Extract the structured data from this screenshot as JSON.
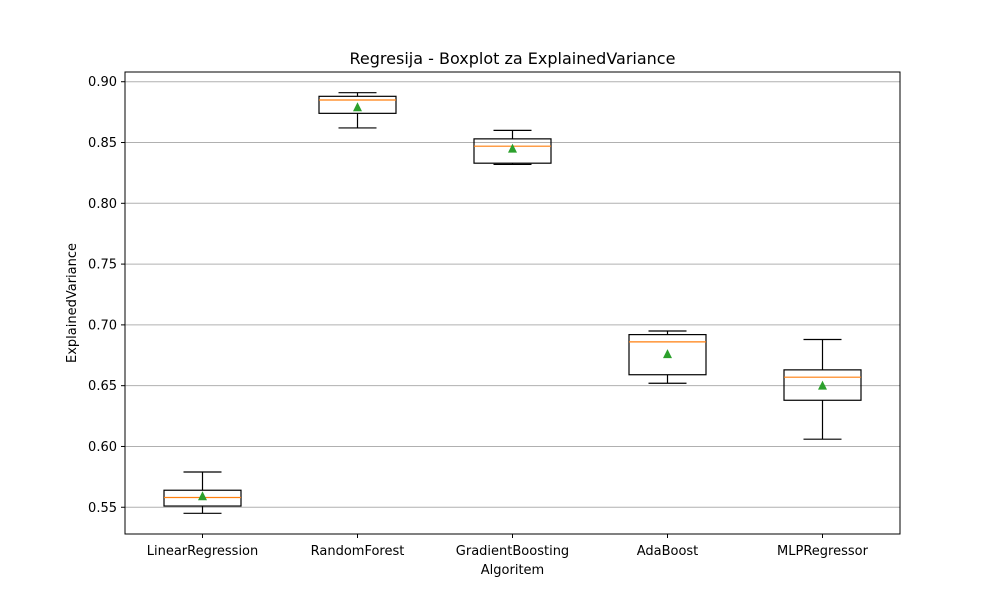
{
  "chart_data": {
    "type": "boxplot",
    "title": "Regresija - Boxplot za ExplainedVariance",
    "xlabel": "Algoritem",
    "ylabel": "ExplainedVariance",
    "ylim": [
      0.528,
      0.908
    ],
    "yticks": [
      "0.55",
      "0.60",
      "0.65",
      "0.70",
      "0.75",
      "0.80",
      "0.85",
      "0.90"
    ],
    "ytick_values": [
      0.55,
      0.6,
      0.65,
      0.7,
      0.75,
      0.8,
      0.85,
      0.9
    ],
    "grid": "y",
    "categories": [
      "LinearRegression",
      "RandomForest",
      "GradientBoosting",
      "AdaBoost",
      "MLPRegressor"
    ],
    "boxes": [
      {
        "whisker_low": 0.545,
        "q1": 0.551,
        "median": 0.558,
        "q3": 0.564,
        "whisker_high": 0.579,
        "mean": 0.559
      },
      {
        "whisker_low": 0.862,
        "q1": 0.874,
        "median": 0.885,
        "q3": 0.888,
        "whisker_high": 0.891,
        "mean": 0.879
      },
      {
        "whisker_low": 0.832,
        "q1": 0.833,
        "median": 0.847,
        "q3": 0.853,
        "whisker_high": 0.86,
        "mean": 0.845
      },
      {
        "whisker_low": 0.652,
        "q1": 0.659,
        "median": 0.686,
        "q3": 0.692,
        "whisker_high": 0.695,
        "mean": 0.676
      },
      {
        "whisker_low": 0.606,
        "q1": 0.638,
        "median": 0.657,
        "q3": 0.663,
        "whisker_high": 0.688,
        "mean": 0.65
      }
    ],
    "colors": {
      "box": "#000000",
      "median": "#ff7f0e",
      "mean": "#2ca02c",
      "grid": "#b0b0b0"
    }
  }
}
